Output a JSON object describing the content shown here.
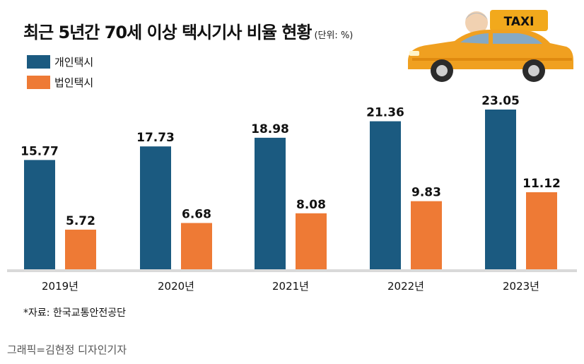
{
  "header": {
    "title": "최근 5년간 70세 이상 택시기사 비율 현황",
    "unit": "(단위: %)"
  },
  "legend": [
    {
      "label": "개인택시",
      "color": "#1b5a80"
    },
    {
      "label": "법인택시",
      "color": "#ee7a35"
    }
  ],
  "chart_data": {
    "type": "bar",
    "title": "최근 5년간 70세 이상 택시기사 비율 현황",
    "unit": "%",
    "categories": [
      "2019년",
      "2020년",
      "2021년",
      "2022년",
      "2023년"
    ],
    "series": [
      {
        "name": "개인택시",
        "values": [
          15.77,
          17.73,
          18.98,
          21.36,
          23.05
        ],
        "color": "#1b5a80"
      },
      {
        "name": "법인택시",
        "values": [
          5.72,
          6.68,
          8.08,
          9.83,
          11.12
        ],
        "color": "#ee7a35"
      }
    ],
    "ylim": [
      0,
      25
    ],
    "grid": false,
    "legend_position": "top-left"
  },
  "taxi_sign": "TAXI",
  "source": "*자료: 한국교통안전공단",
  "credit": "그래픽=김현정 디자인기자"
}
